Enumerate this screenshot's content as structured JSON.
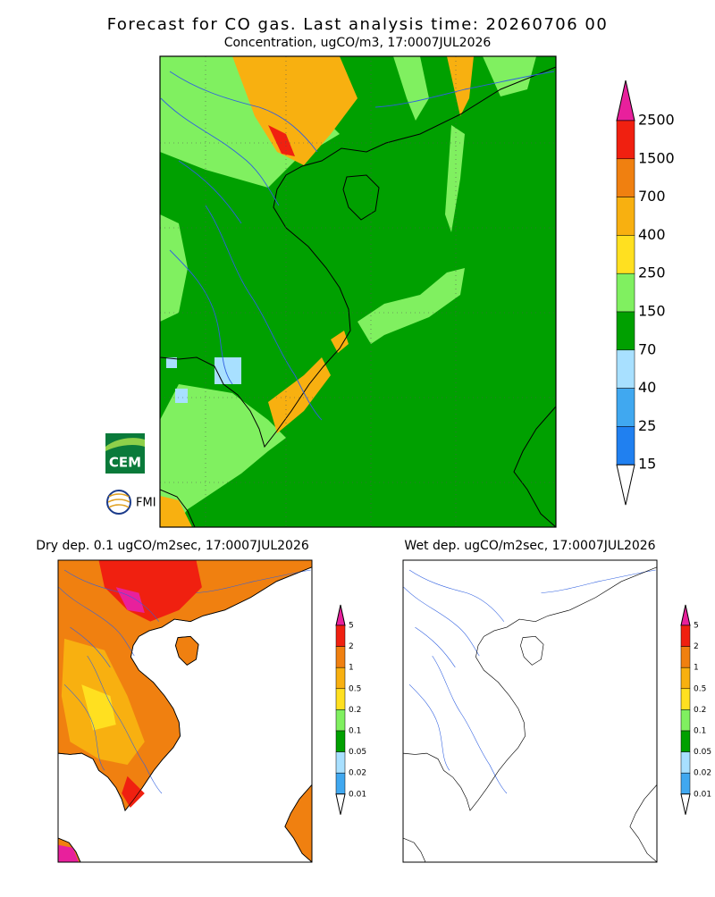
{
  "title": "Forecast for CO gas. Last analysis time: 20260706 00",
  "panels": [
    {
      "title": "Concentration, ugCO/m3, 17:0007JUL2026",
      "colorbar": {
        "labels": [
          "2500",
          "1500",
          "700",
          "400",
          "250",
          "150",
          "70",
          "40",
          "25",
          "15"
        ],
        "colors": [
          "#f02010",
          "#f08010",
          "#f8b010",
          "#ffe020",
          "#80f060",
          "#00a000",
          "#a8e0ff",
          "#40a8f0",
          "#2080f0"
        ],
        "over": "#e8209c",
        "under": "#ffffff"
      }
    },
    {
      "title": "Dry dep. 0.1 ugCO/m2sec, 17:0007JUL2026",
      "colorbar": {
        "labels": [
          "5",
          "2",
          "1",
          "0.5",
          "0.2",
          "0.1",
          "0.05",
          "0.02",
          "0.01"
        ],
        "colors": [
          "#f02010",
          "#f08010",
          "#f8b010",
          "#ffe020",
          "#80f060",
          "#00a000",
          "#a8e0ff",
          "#40a8f0"
        ],
        "over": "#e8209c",
        "under": "#ffffff"
      }
    },
    {
      "title": "Wet dep. ugCO/m2sec, 17:0007JUL2026",
      "colorbar": {
        "labels": [
          "5",
          "2",
          "1",
          "0.5",
          "0.2",
          "0.1",
          "0.05",
          "0.02",
          "0.01"
        ],
        "colors": [
          "#f02010",
          "#f08010",
          "#f8b010",
          "#ffe020",
          "#80f060",
          "#00a000",
          "#a8e0ff",
          "#40a8f0"
        ],
        "over": "#e8209c",
        "under": "#ffffff"
      }
    }
  ],
  "logos": [
    "CEM",
    "FMI"
  ]
}
